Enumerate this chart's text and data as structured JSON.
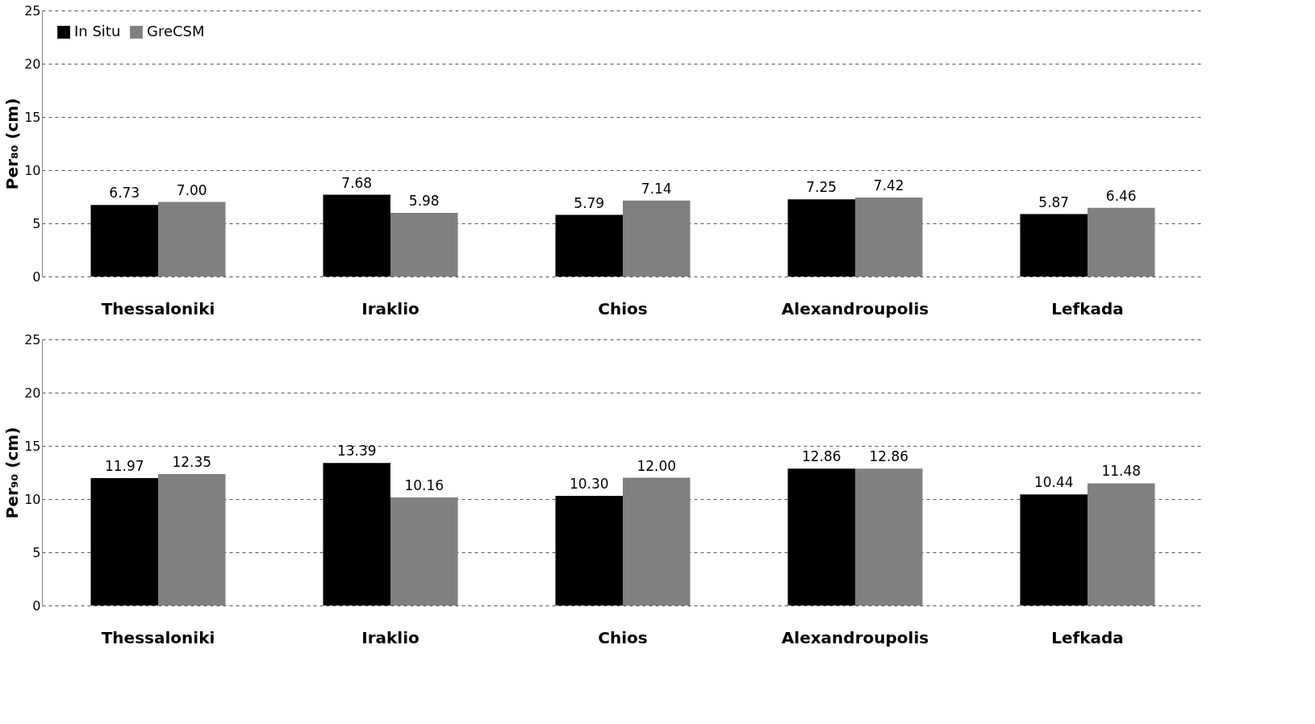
{
  "chart_data": [
    {
      "type": "bar",
      "ylabel": "Per₈₀ (cm)",
      "categories": [
        "Thessaloniki",
        "Iraklio",
        "Chios",
        "Alexandroupolis",
        "Lefkada"
      ],
      "series": [
        {
          "name": "In Situ",
          "color": "#000000",
          "values": [
            6.73,
            7.68,
            5.79,
            7.25,
            5.87
          ],
          "value_labels": [
            "6.73",
            "7.68",
            "5.79",
            "7.25",
            "5.87"
          ]
        },
        {
          "name": "GreCSM",
          "color": "#808080",
          "values": [
            7.0,
            5.98,
            7.14,
            7.42,
            6.46
          ],
          "value_labels": [
            "7.00",
            "5.98",
            "7.14",
            "7.42",
            "6.46"
          ]
        }
      ],
      "ylim": [
        0,
        25
      ],
      "yticks": [
        0,
        5,
        10,
        15,
        20,
        25
      ],
      "grid": "y",
      "legend": "top left"
    },
    {
      "type": "bar",
      "ylabel": "Per₉₀ (cm)",
      "categories": [
        "Thessaloniki",
        "Iraklio",
        "Chios",
        "Alexandroupolis",
        "Lefkada"
      ],
      "series": [
        {
          "name": "In Situ",
          "color": "#000000",
          "values": [
            11.97,
            13.39,
            10.3,
            12.86,
            10.44
          ],
          "value_labels": [
            "11.97",
            "13.39",
            "10.30",
            "12.86",
            "10.44"
          ]
        },
        {
          "name": "GreCSM",
          "color": "#808080",
          "values": [
            12.35,
            10.16,
            12.0,
            12.86,
            11.48
          ],
          "value_labels": [
            "12.35",
            "10.16",
            "12.00",
            "12.86",
            "11.48"
          ]
        }
      ],
      "ylim": [
        0,
        25
      ],
      "yticks": [
        0,
        5,
        10,
        15,
        20,
        25
      ],
      "grid": "y",
      "legend": "top left"
    }
  ]
}
